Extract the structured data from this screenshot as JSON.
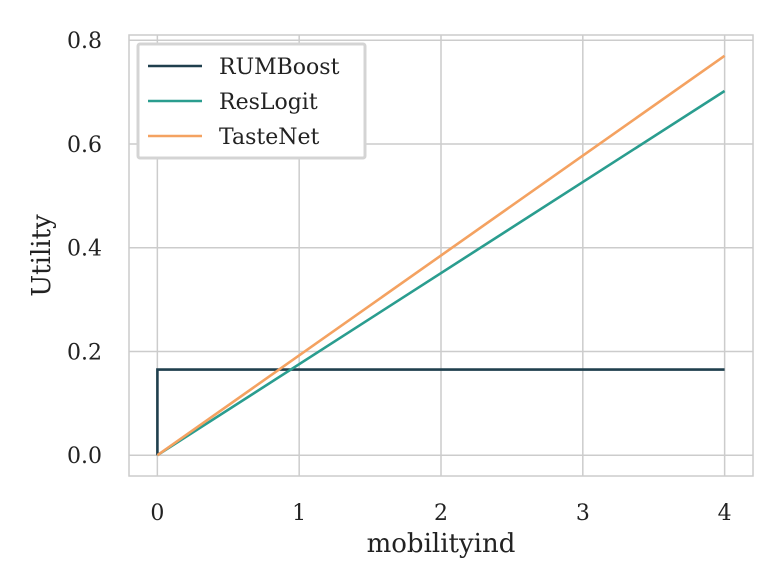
{
  "chart_data": {
    "type": "line",
    "xlabel": "mobilityind",
    "ylabel": "Utility",
    "xlim": [
      -0.2,
      4.2
    ],
    "ylim": [
      -0.04,
      0.81
    ],
    "xticks": [
      0,
      1,
      2,
      3,
      4
    ],
    "xtick_labels": [
      "0",
      "1",
      "2",
      "3",
      "4"
    ],
    "yticks": [
      0.0,
      0.2,
      0.4,
      0.6,
      0.8
    ],
    "ytick_labels": [
      "0.0",
      "0.2",
      "0.4",
      "0.6",
      "0.8"
    ],
    "grid": true,
    "legend_position": "top-left",
    "series": [
      {
        "name": "RUMBoost",
        "color": "#1f3f4d",
        "x": [
          0,
          0,
          4
        ],
        "y": [
          0.0,
          0.165,
          0.165
        ]
      },
      {
        "name": "ResLogit",
        "color": "#2a9d8f",
        "x": [
          0,
          4
        ],
        "y": [
          0.0,
          0.702
        ]
      },
      {
        "name": "TasteNet",
        "color": "#f4a261",
        "x": [
          0,
          4
        ],
        "y": [
          0.0,
          0.77
        ]
      }
    ]
  }
}
